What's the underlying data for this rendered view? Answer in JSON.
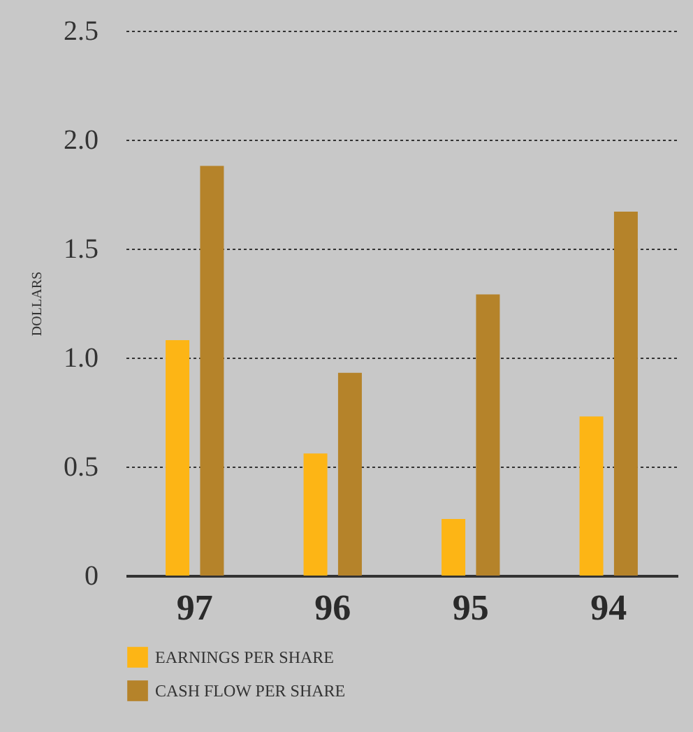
{
  "chart_data": {
    "type": "bar",
    "ylabel": "DOLLARS",
    "categories": [
      "97",
      "96",
      "95",
      "94"
    ],
    "series": [
      {
        "name": "EARNINGS PER SHARE",
        "color": "#fdb515",
        "values": [
          1.08,
          0.56,
          0.26,
          0.73
        ]
      },
      {
        "name": "CASH FLOW PER SHARE",
        "color": "#b5832a",
        "values": [
          1.88,
          0.93,
          1.29,
          1.67
        ]
      }
    ],
    "ylim": [
      0,
      2.5
    ],
    "yticks": [
      0,
      0.5,
      {
        "value": 1,
        "label": "1.0"
      },
      1.5,
      {
        "value": 2,
        "label": "2.0"
      },
      2.5
    ],
    "grid": "y",
    "legend": "bottom"
  }
}
